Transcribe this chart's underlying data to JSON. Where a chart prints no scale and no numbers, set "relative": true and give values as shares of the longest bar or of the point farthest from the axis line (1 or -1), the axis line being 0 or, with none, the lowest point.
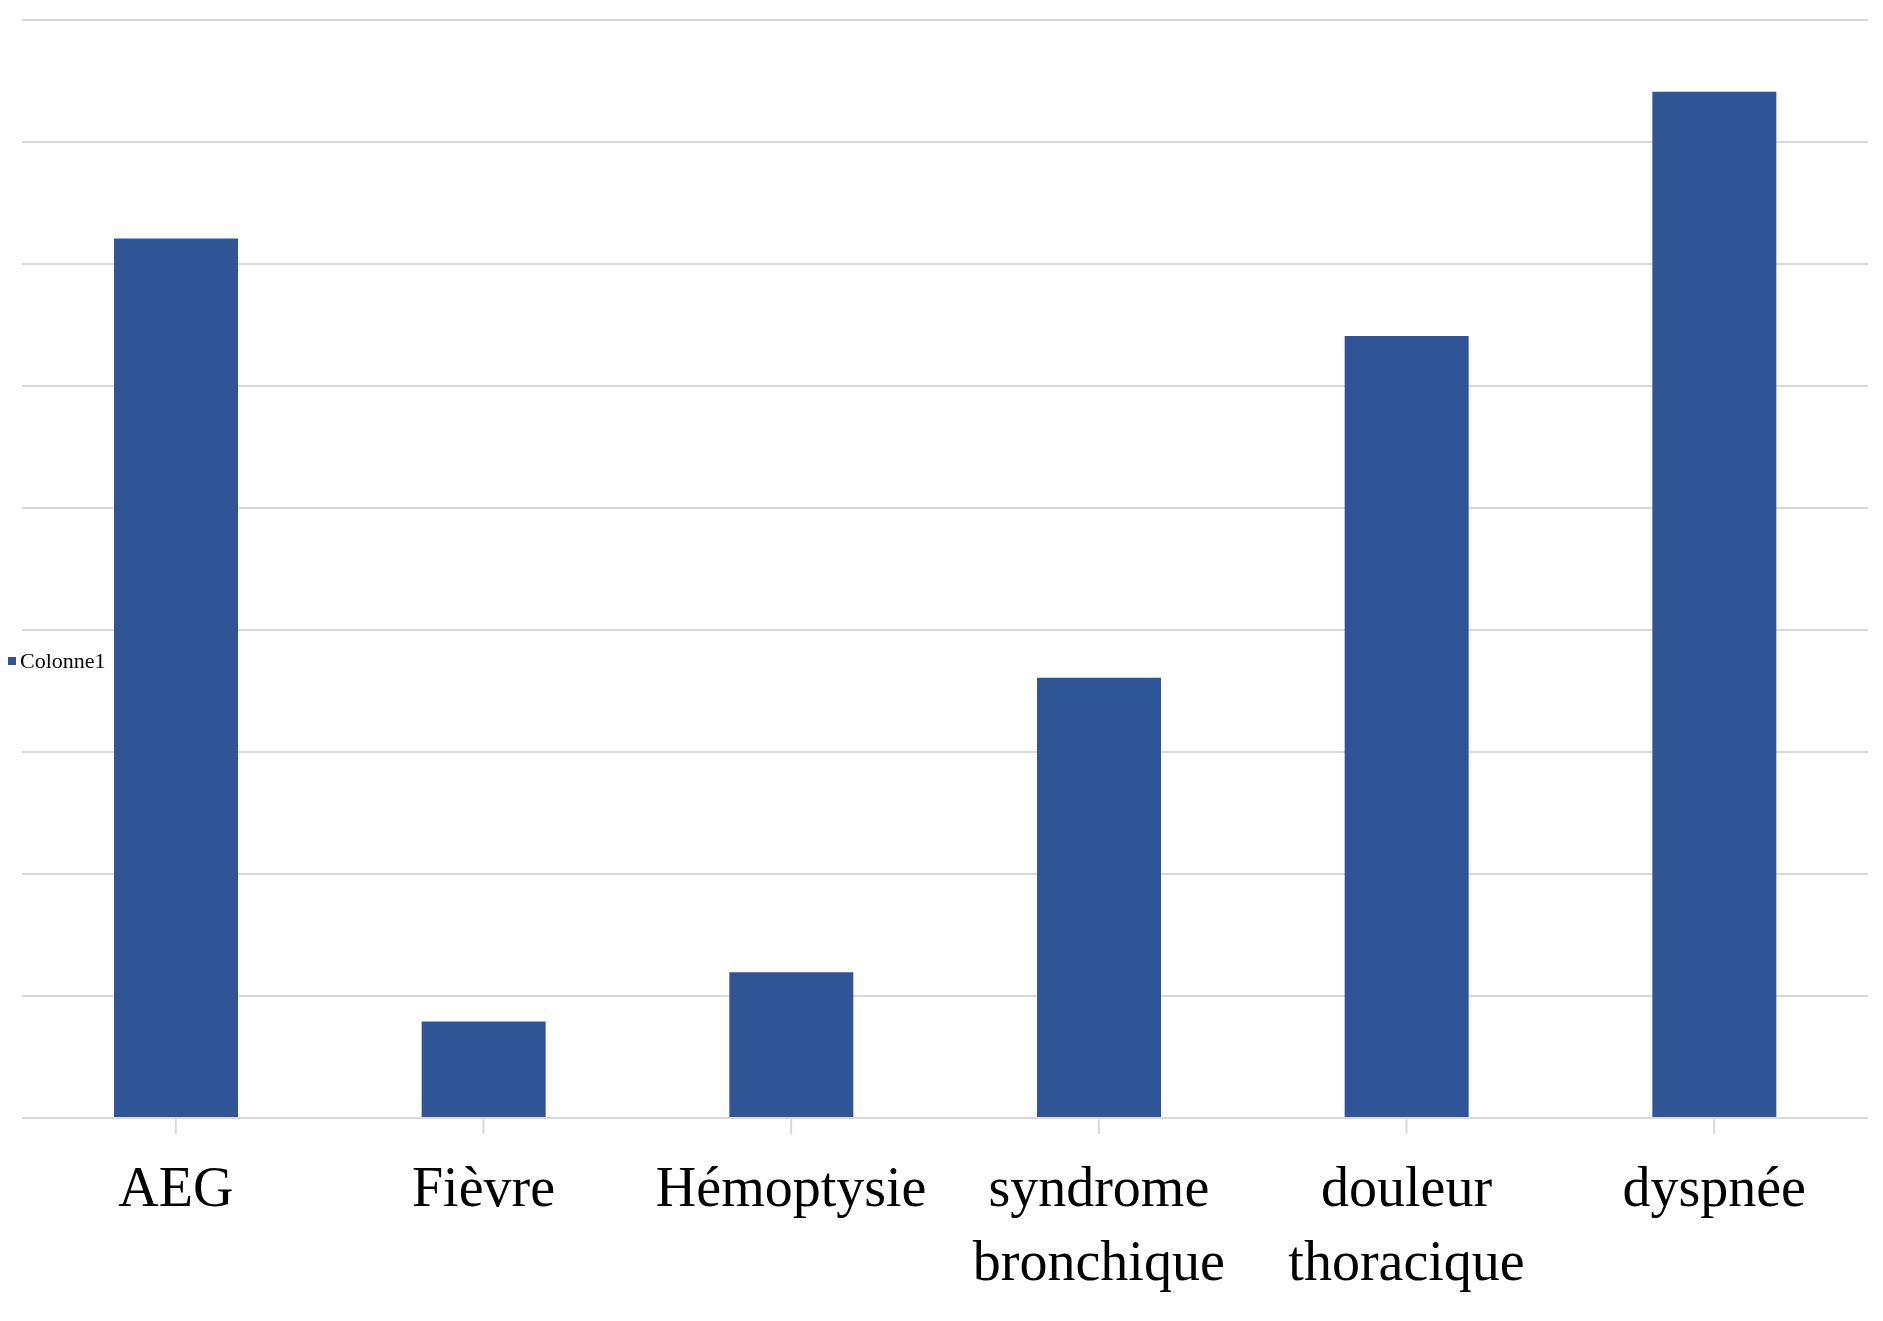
{
  "chart_data": {
    "type": "bar",
    "relative": true,
    "categories": [
      "AEG",
      "Fièvre",
      "Hémoptysie",
      "syndrome bronchique",
      "douleur thoracique",
      "dyspnée"
    ],
    "series": [
      {
        "name": "Colonne1",
        "color": "#2f5597",
        "values": [
          0.857,
          0.094,
          0.142,
          0.429,
          0.762,
          1
        ]
      }
    ],
    "grid": "y",
    "legend": "left"
  }
}
